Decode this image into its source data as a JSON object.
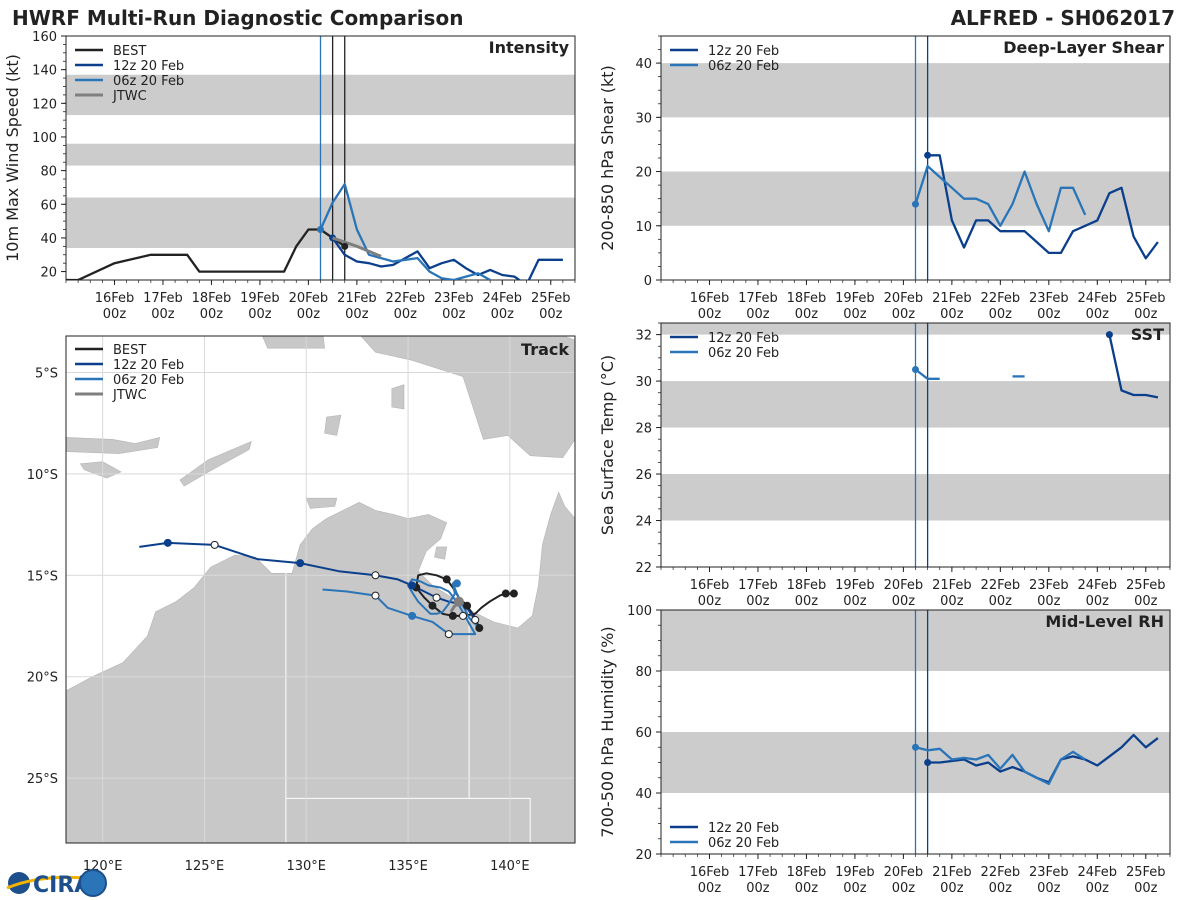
{
  "header": {
    "title": "HWRF Multi-Run Diagnostic Comparison",
    "storm": "ALFRED - SH062017"
  },
  "logo": {
    "text": "CIRA",
    "colors": {
      "primary": "#1d4f8c",
      "accent": "#f2b200"
    }
  },
  "colors": {
    "best": "#222222",
    "run12z": "#0b3f8c",
    "run06z": "#2a74b8",
    "jtwc": "#7f7f7f",
    "band": "#cccccc",
    "land": "#c8c8c8"
  },
  "time_axis": {
    "xlim": [
      -1.0,
      9.5
    ],
    "ticks": [
      0,
      1,
      2,
      3,
      4,
      5,
      6,
      7,
      8,
      9
    ],
    "labels_top": [
      "16Feb",
      "17Feb",
      "18Feb",
      "19Feb",
      "20Feb",
      "21Feb",
      "22Feb",
      "23Feb",
      "24Feb",
      "25Feb"
    ],
    "labels_bottom": [
      "00z",
      "00z",
      "00z",
      "00z",
      "00z",
      "00z",
      "00z",
      "00z",
      "00z",
      "00z"
    ]
  },
  "chart_data": [
    {
      "id": "intensity",
      "type": "line",
      "title": "Intensity",
      "ylabel": "10m Max Wind Speed (kt)",
      "ylim": [
        15,
        160
      ],
      "yticks": [
        20,
        40,
        60,
        80,
        100,
        120,
        140,
        160
      ],
      "bands": [
        [
          34,
          64
        ],
        [
          83,
          96
        ],
        [
          113,
          137
        ]
      ],
      "vlines": [
        {
          "x": 4.25,
          "series": "06z"
        },
        {
          "x": 4.5,
          "series": "best"
        },
        {
          "x": 4.75,
          "series": "best"
        }
      ],
      "legend": [
        "BEST",
        "12z 20 Feb",
        "06z 20 Feb",
        "JTWC"
      ],
      "series": [
        {
          "name": "BEST",
          "key": "best",
          "x": [
            -1,
            -0.75,
            0,
            0.75,
            1,
            1.5,
            1.75,
            2,
            2.5,
            3,
            3.5,
            3.75,
            4,
            4.25,
            4.5,
            4.75
          ],
          "values": [
            15,
            15,
            25,
            30,
            30,
            30,
            20,
            20,
            20,
            20,
            20,
            35,
            45,
            45,
            40,
            35
          ]
        },
        {
          "name": "12z 20 Feb",
          "key": "run12z",
          "x": [
            4.5,
            4.75,
            5.0,
            5.25,
            5.5,
            5.75,
            6.0,
            6.25,
            6.5,
            6.75,
            7.0,
            7.25,
            7.5,
            7.75,
            8.0,
            8.25,
            8.5,
            8.75,
            9.0,
            9.25
          ],
          "values": [
            40,
            30,
            26,
            25,
            23,
            24,
            28,
            32,
            22,
            25,
            27,
            22,
            18,
            21,
            18,
            17,
            12,
            27,
            27,
            27
          ]
        },
        {
          "name": "06z 20 Feb",
          "key": "run06z",
          "x": [
            4.25,
            4.5,
            4.75,
            5.0,
            5.25,
            5.5,
            5.75,
            6.0,
            6.25,
            6.5,
            6.75,
            7.0,
            7.25,
            7.5,
            7.75
          ],
          "values": [
            45,
            61,
            72,
            45,
            30,
            28,
            26,
            27,
            28,
            20,
            16,
            15,
            17,
            19,
            15
          ]
        },
        {
          "name": "JTWC",
          "key": "jtwc",
          "x": [
            4.5,
            5.0,
            5.5
          ],
          "values": [
            40,
            35,
            29
          ]
        }
      ]
    },
    {
      "id": "shear",
      "type": "line",
      "title": "Deep-Layer Shear",
      "ylabel": "200-850 hPa Shear (kt)",
      "ylim": [
        0,
        45
      ],
      "yticks": [
        0,
        10,
        20,
        30,
        40
      ],
      "bands": [
        [
          10,
          20
        ],
        [
          30,
          40
        ]
      ],
      "vlines": [
        {
          "x": 4.25,
          "series": "06z"
        },
        {
          "x": 4.5,
          "series": "12z"
        }
      ],
      "legend": [
        "12z 20 Feb",
        "06z 20 Feb"
      ],
      "series": [
        {
          "name": "12z 20 Feb",
          "key": "run12z",
          "x": [
            4.5,
            4.625,
            4.75,
            5.0,
            5.25,
            5.5,
            5.75,
            6.0,
            6.25,
            6.5,
            6.75,
            7.0,
            7.25,
            7.5,
            7.75,
            8.0,
            8.25,
            8.5,
            8.75,
            9.0,
            9.25
          ],
          "values": [
            23,
            23,
            23,
            11,
            6,
            11,
            11,
            9,
            9,
            9,
            7,
            5,
            5,
            9,
            10,
            11,
            16,
            17,
            8,
            4,
            7
          ]
        },
        {
          "name": "06z 20 Feb",
          "key": "run06z",
          "x": [
            4.25,
            4.5,
            4.75,
            5.0,
            5.25,
            5.5,
            5.75,
            6.0,
            6.25,
            6.5,
            6.75,
            7.0,
            7.25,
            7.5,
            7.75
          ],
          "values": [
            14,
            21,
            19,
            17,
            15,
            15,
            14,
            10,
            14,
            20,
            14,
            9,
            17,
            17,
            12
          ]
        }
      ]
    },
    {
      "id": "sst",
      "type": "line",
      "title": "SST",
      "ylabel": "Sea Surface Temp (°C)",
      "ylim": [
        22,
        32.5
      ],
      "yticks": [
        22,
        24,
        26,
        28,
        30,
        32
      ],
      "bands": [
        [
          24,
          26
        ],
        [
          28,
          30
        ],
        [
          32,
          32.5
        ]
      ],
      "vlines": [
        {
          "x": 4.25,
          "series": "06z"
        },
        {
          "x": 4.5,
          "series": "12z"
        }
      ],
      "legend": [
        "12z 20 Feb",
        "06z 20 Feb"
      ],
      "series": [
        {
          "name": "12z 20 Feb",
          "key": "run12z",
          "segments": [
            {
              "x": [
                8.25,
                8.5,
                8.75,
                9.0,
                9.25
              ],
              "values": [
                32.0,
                29.6,
                29.4,
                29.4,
                29.3
              ]
            }
          ]
        },
        {
          "name": "06z 20 Feb",
          "key": "run06z",
          "segments": [
            {
              "x": [
                4.25,
                4.5,
                4.75
              ],
              "values": [
                30.5,
                30.1,
                30.1
              ]
            },
            {
              "x": [
                6.25,
                6.5
              ],
              "values": [
                30.2,
                30.2
              ]
            }
          ]
        }
      ]
    },
    {
      "id": "rh",
      "type": "line",
      "title": "Mid-Level RH",
      "ylabel": "700-500 hPa Humidity (%)",
      "ylim": [
        20,
        100
      ],
      "yticks": [
        20,
        40,
        60,
        80,
        100
      ],
      "bands": [
        [
          40,
          60
        ],
        [
          80,
          100
        ]
      ],
      "vlines": [
        {
          "x": 4.25,
          "series": "06z"
        },
        {
          "x": 4.5,
          "series": "12z"
        }
      ],
      "legend": [
        "12z 20 Feb",
        "06z 20 Feb"
      ],
      "legend_loc": "lower-left",
      "series": [
        {
          "name": "12z 20 Feb",
          "key": "run12z",
          "x": [
            4.5,
            4.75,
            5.0,
            5.25,
            5.5,
            5.75,
            6.0,
            6.25,
            6.5,
            6.75,
            7.0,
            7.25,
            7.5,
            7.75,
            8.0,
            8.25,
            8.5,
            8.75,
            9.0,
            9.25
          ],
          "values": [
            50,
            50,
            50.5,
            51,
            49,
            50,
            47,
            48.5,
            47,
            45,
            43.5,
            51,
            52,
            51,
            49,
            52,
            55,
            59,
            55,
            58
          ]
        },
        {
          "name": "06z 20 Feb",
          "key": "run06z",
          "x": [
            4.25,
            4.5,
            4.75,
            5.0,
            5.25,
            5.5,
            5.75,
            6.0,
            6.25,
            6.5,
            6.75,
            7.0,
            7.25,
            7.5,
            7.75
          ],
          "values": [
            55,
            54,
            54.5,
            51,
            51.5,
            51,
            52.5,
            48,
            52.5,
            47,
            45,
            43,
            51,
            53.5,
            51
          ]
        }
      ]
    },
    {
      "id": "track",
      "type": "map",
      "title": "Track",
      "xlim": [
        118.2,
        143.2
      ],
      "ylim": [
        -28.2,
        -3.2
      ],
      "xticks": [
        120,
        125,
        130,
        135,
        140
      ],
      "xtick_labels": [
        "120°E",
        "125°E",
        "130°E",
        "135°E",
        "140°E"
      ],
      "yticks": [
        -5,
        -10,
        -15,
        -20,
        -25
      ],
      "ytick_labels": [
        "5°S",
        "10°S",
        "15°S",
        "20°S",
        "25°S"
      ],
      "legend": [
        "BEST",
        "12z 20 Feb",
        "06z 20 Feb",
        "JTWC"
      ],
      "series": [
        {
          "name": "BEST",
          "key": "best",
          "lon": [
            140.2,
            139.8,
            139.5,
            139.0,
            138.6,
            138.3,
            137.7,
            137.2,
            136.7,
            136.2,
            135.8,
            135.4,
            135.5,
            135.9,
            136.4,
            136.9,
            137.2,
            137.5,
            137.9,
            138.3,
            138.5
          ],
          "lat": [
            -15.9,
            -15.9,
            -16.0,
            -16.3,
            -16.6,
            -16.9,
            -17.0,
            -17.0,
            -16.9,
            -16.5,
            -16.1,
            -15.6,
            -15.0,
            -14.9,
            -15.0,
            -15.2,
            -15.6,
            -16.1,
            -16.5,
            -17.1,
            -17.6
          ]
        },
        {
          "name": "12z 20 Feb",
          "key": "run12z",
          "lon": [
            138.3,
            137.9,
            137.5,
            137.0,
            136.4,
            135.8,
            135.2,
            134.5,
            133.4,
            131.6,
            129.7,
            127.6,
            125.5,
            123.2,
            121.8
          ],
          "lat": [
            -17.2,
            -16.6,
            -16.4,
            -16.3,
            -16.1,
            -15.8,
            -15.5,
            -15.2,
            -15.0,
            -14.8,
            -14.4,
            -14.2,
            -13.5,
            -13.4,
            -13.6
          ]
        },
        {
          "name": "06z 20 Feb",
          "key": "run06z",
          "lon": [
            138.4,
            138.0,
            137.7,
            137.4,
            137.2,
            137.3,
            137.0,
            136.7,
            136.4,
            136.1,
            135.8,
            135.5,
            135.3,
            135.0,
            135.2,
            135.6,
            136.0,
            136.6,
            137.0,
            137.4,
            138.3,
            137.0,
            136.2,
            135.2,
            134.0,
            133.4,
            132.0,
            130.8
          ],
          "lat": [
            -17.5,
            -17.1,
            -16.5,
            -15.9,
            -15.4,
            -15.9,
            -16.4,
            -16.8,
            -16.9,
            -16.9,
            -16.6,
            -16.3,
            -16.0,
            -15.5,
            -15.2,
            -15.3,
            -15.5,
            -15.6,
            -15.8,
            -16.3,
            -17.9,
            -17.9,
            -17.3,
            -17.0,
            -16.6,
            -16.0,
            -15.8,
            -15.7
          ]
        },
        {
          "name": "JTWC",
          "key": "jtwc",
          "lon": [
            137.6,
            137.3,
            137.1
          ],
          "lat": [
            -16.3,
            -16.5,
            -16.8
          ]
        }
      ],
      "markers": [
        {
          "key": "best",
          "filled": true,
          "lon": [
            140.2,
            139.8,
            137.2,
            136.2,
            135.4,
            137.9,
            138.5,
            136.9
          ],
          "lat": [
            -15.9,
            -15.9,
            -17.0,
            -16.5,
            -15.6,
            -16.5,
            -17.6,
            -15.2
          ]
        },
        {
          "key": "run12z",
          "filled": true,
          "lon": [
            135.2,
            129.7,
            123.2
          ],
          "lat": [
            -15.5,
            -14.4,
            -13.4
          ]
        },
        {
          "key": "run12z",
          "filled": false,
          "lon": [
            138.3,
            136.4,
            133.4,
            125.5
          ],
          "lat": [
            -17.2,
            -16.1,
            -15.0,
            -13.5
          ]
        },
        {
          "key": "run06z",
          "filled": true,
          "lon": [
            137.4,
            135.2
          ],
          "lat": [
            -15.4,
            -17.0
          ]
        },
        {
          "key": "run06z",
          "filled": false,
          "lon": [
            137.7,
            137.0,
            133.4
          ],
          "lat": [
            -17.0,
            -17.9,
            -16.0
          ]
        },
        {
          "key": "jtwc",
          "filled": true,
          "lon": [
            137.5
          ],
          "lat": [
            -16.3
          ]
        }
      ]
    }
  ]
}
